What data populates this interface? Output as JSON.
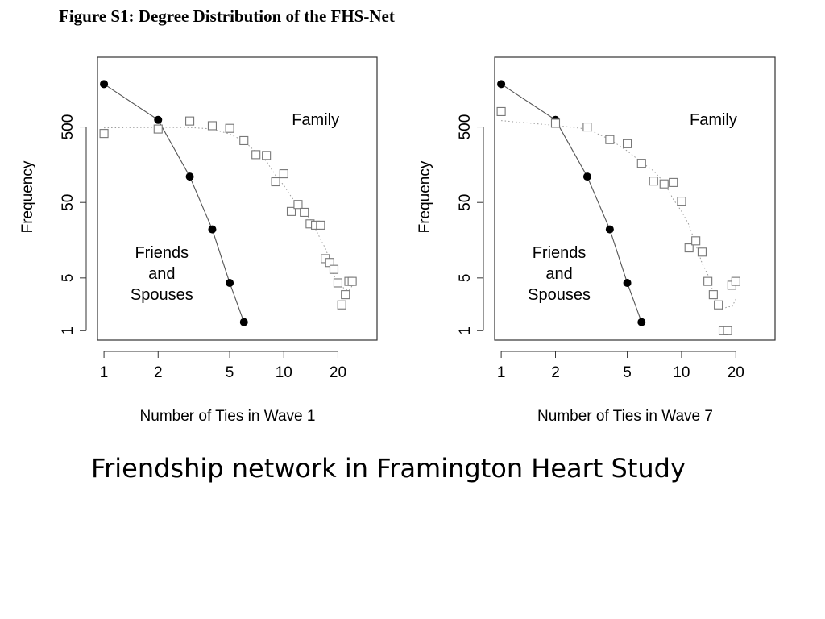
{
  "figure_title": "Figure S1: Degree Distribution of the FHS-Net",
  "caption": "Friendship network in Framington Heart Study",
  "chart_data": [
    {
      "type": "scatter",
      "title": "",
      "xlabel": "Number of Ties in Wave 1",
      "ylabel": "Frequency",
      "xscale": "log",
      "yscale": "log",
      "xticks": [
        1,
        2,
        5,
        10,
        20
      ],
      "yticks": [
        1,
        5,
        50,
        500
      ],
      "xlim": [
        0.92,
        33
      ],
      "ylim": [
        0.75,
        4200
      ],
      "grid": false,
      "annotations": [
        "Family",
        "Friends\nand\nSpouses"
      ],
      "series": [
        {
          "marker": "filled-circle",
          "line": "solid",
          "x": [
            1,
            2,
            3,
            4,
            5,
            6
          ],
          "y": [
            1850,
            620,
            110,
            22,
            4.3,
            1.3
          ]
        },
        {
          "marker": "open-square",
          "line": "dotted",
          "x": [
            1,
            2,
            3,
            4,
            5,
            6,
            7,
            8,
            9,
            10,
            11,
            12,
            13,
            14,
            15,
            16,
            17,
            18,
            19,
            20,
            21,
            22,
            23,
            24
          ],
          "y": [
            410,
            470,
            600,
            520,
            480,
            330,
            215,
            210,
            94,
            120,
            38,
            47,
            37,
            26,
            25,
            25,
            9,
            8,
            6.5,
            4.3,
            2.2,
            3.0,
            4.5,
            4.5
          ]
        }
      ]
    },
    {
      "type": "scatter",
      "title": "",
      "xlabel": "Number of Ties in Wave 7",
      "ylabel": "Frequency",
      "xscale": "log",
      "yscale": "log",
      "xticks": [
        1,
        2,
        5,
        10,
        20
      ],
      "yticks": [
        1,
        5,
        50,
        500
      ],
      "xlim": [
        0.92,
        33
      ],
      "ylim": [
        0.75,
        4200
      ],
      "grid": false,
      "annotations": [
        "Family",
        "Friends\nand\nSpouses"
      ],
      "series": [
        {
          "marker": "filled-circle",
          "line": "solid",
          "x": [
            1,
            2,
            3,
            4,
            5,
            6
          ],
          "y": [
            1850,
            620,
            110,
            22,
            4.3,
            1.3
          ]
        },
        {
          "marker": "open-square",
          "line": "dotted",
          "x": [
            1,
            2,
            3,
            4,
            5,
            6,
            7,
            8,
            9,
            10,
            11,
            12,
            13,
            14,
            15,
            16,
            17,
            18,
            19,
            20
          ],
          "y": [
            800,
            560,
            500,
            340,
            300,
            165,
            96,
            88,
            92,
            52,
            12.5,
            15.5,
            11,
            4.5,
            3.0,
            2.2,
            1.0,
            1.0,
            4.0,
            4.5
          ]
        }
      ]
    }
  ]
}
